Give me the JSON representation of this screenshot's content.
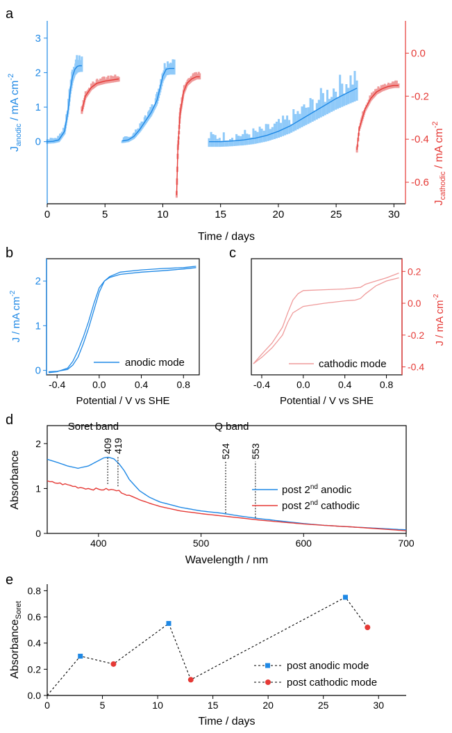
{
  "colors": {
    "anodic": "#1E88E5",
    "anodic_light": "#90CAF9",
    "cathodic": "#E53935",
    "cathodic_light": "#EF9A9A",
    "axis": "#000000"
  },
  "panels": {
    "a": "a",
    "b": "b",
    "c": "c",
    "d": "d",
    "e": "e"
  },
  "chart_data": [
    {
      "panel": "a",
      "type": "line",
      "xlabel": "Time / days",
      "ylabel_left": "J_anodic / mA cm^-2",
      "ylabel_left_main": "J",
      "ylabel_left_sub": "anodic",
      "ylabel_left_rest": " / mA cm",
      "ylabel_left_sup": "-2",
      "ylabel_right_main": "J",
      "ylabel_right_sub": "cathodic",
      "ylabel_right_rest": " / mA cm",
      "ylabel_right_sup": "-2",
      "xlim": [
        0,
        31
      ],
      "ylim_left": [
        -1.8,
        3.5
      ],
      "ylim_right": [
        -0.7,
        0.15
      ],
      "x_ticks": [
        "0",
        "5",
        "10",
        "15",
        "20",
        "25",
        "30"
      ],
      "y_ticks_left": [
        "0",
        "1",
        "2",
        "3"
      ],
      "y_ticks_right": [
        "0.0",
        "-0.2",
        "-0.4",
        "-0.6"
      ],
      "series": [
        {
          "axis": "left",
          "x": [
            0,
            0.5,
            1.0,
            1.5,
            1.8,
            2.0,
            2.2,
            2.4,
            2.6,
            2.8,
            3.0
          ],
          "values": [
            0,
            0.01,
            0.05,
            0.3,
            0.9,
            1.5,
            1.9,
            2.1,
            2.18,
            2.2,
            2.2
          ]
        },
        {
          "axis": "left",
          "x": [
            6.5,
            7.0,
            7.5,
            8.0,
            8.5,
            9.0,
            9.5,
            9.8,
            10.0,
            10.3,
            10.6,
            11.0
          ],
          "values": [
            0.02,
            0.05,
            0.15,
            0.35,
            0.6,
            0.85,
            1.2,
            1.6,
            1.9,
            2.1,
            2.12,
            2.12
          ]
        },
        {
          "axis": "left",
          "x": [
            14.0,
            15.0,
            16.0,
            17.0,
            18.0,
            19.0,
            20.0,
            21.0,
            22.0,
            23.0,
            24.0,
            25.0,
            26.0,
            26.8
          ],
          "values": [
            0,
            0,
            0.02,
            0.05,
            0.1,
            0.18,
            0.3,
            0.45,
            0.65,
            0.85,
            1.05,
            1.25,
            1.42,
            1.55
          ]
        },
        {
          "axis": "right",
          "x": [
            3.0,
            3.3,
            3.8,
            4.3,
            5.0,
            5.6,
            6.2
          ],
          "values": [
            -0.27,
            -0.2,
            -0.16,
            -0.14,
            -0.13,
            -0.125,
            -0.12
          ]
        },
        {
          "axis": "right",
          "x": [
            11.2,
            11.3,
            11.5,
            11.8,
            12.1,
            12.5,
            12.9,
            13.2
          ],
          "values": [
            -0.66,
            -0.45,
            -0.28,
            -0.18,
            -0.14,
            -0.12,
            -0.11,
            -0.11
          ]
        },
        {
          "axis": "right",
          "x": [
            26.8,
            27.0,
            27.5,
            28.0,
            28.5,
            29.0,
            29.5,
            30.0,
            30.4
          ],
          "values": [
            -0.45,
            -0.35,
            -0.26,
            -0.21,
            -0.18,
            -0.165,
            -0.155,
            -0.15,
            -0.15
          ]
        }
      ]
    },
    {
      "panel": "b",
      "type": "line",
      "xlabel": "Potential / V vs SHE",
      "ylabel": "J / mA cm^-2",
      "ylabel_main": "J / mA cm",
      "ylabel_sup": "-2",
      "legend": "anodic mode",
      "xlim": [
        -0.5,
        0.95
      ],
      "ylim": [
        -0.1,
        2.5
      ],
      "x_ticks": [
        "-0.4",
        "0.0",
        "0.4",
        "0.8"
      ],
      "y_ticks": [
        "0",
        "1",
        "2"
      ],
      "series": [
        {
          "x": [
            -0.48,
            -0.4,
            -0.3,
            -0.25,
            -0.2,
            -0.15,
            -0.1,
            -0.05,
            0.0,
            0.05,
            0.1,
            0.2,
            0.4,
            0.6,
            0.8,
            0.92
          ],
          "values": [
            -0.05,
            -0.03,
            0.05,
            0.2,
            0.45,
            0.75,
            1.1,
            1.5,
            1.85,
            2.0,
            2.08,
            2.15,
            2.2,
            2.23,
            2.27,
            2.3
          ]
        },
        {
          "x": [
            0.92,
            0.8,
            0.6,
            0.4,
            0.2,
            0.1,
            0.05,
            0.0,
            -0.05,
            -0.1,
            -0.15,
            -0.2,
            -0.25,
            -0.3,
            -0.4,
            -0.48
          ],
          "values": [
            2.33,
            2.3,
            2.28,
            2.25,
            2.2,
            2.1,
            2.0,
            1.75,
            1.35,
            0.95,
            0.6,
            0.3,
            0.12,
            0.02,
            -0.02,
            -0.03
          ]
        }
      ]
    },
    {
      "panel": "c",
      "type": "line",
      "xlabel": "Potential / V vs SHE",
      "ylabel_main": "J / mA cm",
      "ylabel_sup": "-2",
      "legend": "cathodic mode",
      "xlim": [
        -0.5,
        0.95
      ],
      "ylim": [
        -0.45,
        0.28
      ],
      "x_ticks": [
        "-0.4",
        "0.0",
        "0.4",
        "0.8"
      ],
      "y_ticks": [
        "0.2",
        "0.0",
        "-0.2",
        "-0.4"
      ],
      "series": [
        {
          "x": [
            -0.48,
            -0.4,
            -0.3,
            -0.2,
            -0.15,
            -0.1,
            -0.05,
            0.0,
            0.2,
            0.4,
            0.55,
            0.6,
            0.7,
            0.8,
            0.92
          ],
          "values": [
            -0.38,
            -0.32,
            -0.25,
            -0.15,
            -0.06,
            0.02,
            0.06,
            0.08,
            0.085,
            0.09,
            0.1,
            0.12,
            0.14,
            0.16,
            0.19
          ]
        },
        {
          "x": [
            0.92,
            0.8,
            0.7,
            0.6,
            0.55,
            0.5,
            0.4,
            0.2,
            0.0,
            -0.1,
            -0.15,
            -0.2,
            -0.25,
            -0.3,
            -0.4,
            -0.48
          ],
          "values": [
            0.16,
            0.14,
            0.11,
            0.06,
            0.03,
            0.02,
            0.015,
            0.0,
            -0.02,
            -0.06,
            -0.12,
            -0.2,
            -0.24,
            -0.28,
            -0.34,
            -0.38
          ]
        }
      ]
    },
    {
      "panel": "d",
      "type": "line",
      "xlabel": "Wavelength / nm",
      "ylabel": "Absorbance",
      "xlim": [
        350,
        700
      ],
      "ylim": [
        0,
        2.4
      ],
      "x_ticks": [
        "400",
        "500",
        "600",
        "700"
      ],
      "y_ticks": [
        "0",
        "1",
        "2"
      ],
      "annotations": [
        {
          "text": "Soret band",
          "x": 395,
          "y": 2.2
        },
        {
          "text": "Q band",
          "x": 530,
          "y": 2.2
        }
      ],
      "peaks": [
        {
          "label": "409",
          "x": 409,
          "y_low": 1.1,
          "y_high": 1.72
        },
        {
          "label": "419",
          "x": 419,
          "y_low": 1.05,
          "y_high": 1.72
        },
        {
          "label": "524",
          "x": 524,
          "y_low": 0.45,
          "y_high": 1.6
        },
        {
          "label": "553",
          "x": 553,
          "y_low": 0.35,
          "y_high": 1.6
        }
      ],
      "series": [
        {
          "name": "post 2nd anodic",
          "legend_main": "post 2",
          "legend_sup": "nd",
          "legend_rest": " anodic",
          "x": [
            350,
            360,
            370,
            380,
            390,
            400,
            405,
            409,
            415,
            420,
            425,
            430,
            440,
            450,
            460,
            480,
            500,
            520,
            540,
            560,
            580,
            600,
            620,
            650,
            700
          ],
          "values": [
            1.65,
            1.58,
            1.5,
            1.45,
            1.5,
            1.62,
            1.68,
            1.7,
            1.66,
            1.55,
            1.4,
            1.2,
            0.95,
            0.8,
            0.7,
            0.58,
            0.5,
            0.45,
            0.38,
            0.32,
            0.27,
            0.22,
            0.18,
            0.14,
            0.08
          ]
        },
        {
          "name": "post 2nd cathodic",
          "legend_main": "post 2",
          "legend_sup": "nd",
          "legend_rest": " cathodic",
          "x": [
            350,
            360,
            370,
            380,
            390,
            400,
            409,
            419,
            430,
            440,
            450,
            460,
            480,
            500,
            520,
            540,
            560,
            580,
            600,
            620,
            650,
            700
          ],
          "values": [
            1.15,
            1.12,
            1.08,
            1.03,
            1.0,
            0.98,
            0.98,
            0.95,
            0.85,
            0.75,
            0.67,
            0.6,
            0.5,
            0.44,
            0.39,
            0.34,
            0.29,
            0.25,
            0.21,
            0.18,
            0.14,
            0.06
          ]
        }
      ]
    },
    {
      "panel": "e",
      "type": "scatter",
      "xlabel": "Time / days",
      "ylabel_main": "Absorbance",
      "ylabel_sub": "Soret",
      "xlim": [
        0,
        32.5
      ],
      "ylim": [
        0,
        0.85
      ],
      "x_ticks": [
        "0",
        "5",
        "10",
        "15",
        "20",
        "25",
        "30"
      ],
      "y_ticks": [
        "0.0",
        "0.2",
        "0.4",
        "0.6",
        "0.8"
      ],
      "connect_order_x": [
        0,
        3,
        6,
        11,
        13,
        27,
        29
      ],
      "connect_order_y": [
        0.0,
        0.3,
        0.24,
        0.55,
        0.12,
        0.75,
        0.52
      ],
      "series": [
        {
          "name": "post anodic mode",
          "marker": "square",
          "x": [
            3,
            11,
            27
          ],
          "values": [
            0.3,
            0.55,
            0.75
          ]
        },
        {
          "name": "post cathodic mode",
          "marker": "circle",
          "x": [
            6,
            13,
            29
          ],
          "values": [
            0.24,
            0.12,
            0.52
          ]
        }
      ]
    }
  ]
}
